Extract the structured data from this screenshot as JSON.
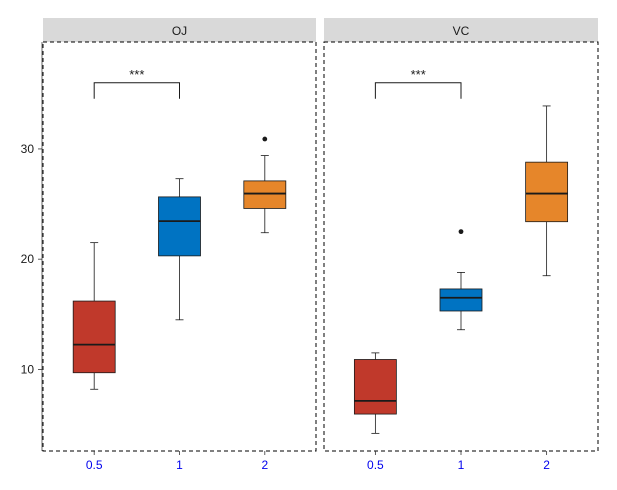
{
  "chart_data": {
    "type": "boxplot",
    "title": "",
    "xlabel": "",
    "ylabel": "",
    "ylim": [
      2.6,
      39.7
    ],
    "y_ticks": [
      10,
      20,
      30
    ],
    "categories": [
      "0.5",
      "1",
      "2"
    ],
    "tick_label_color": "#0000ee",
    "series_colors": {
      "0.5": "#c0392b",
      "1": "#0073c2",
      "2": "#e6862a"
    },
    "facets": [
      {
        "label": "OJ",
        "boxes": [
          {
            "category": "0.5",
            "min": 8.2,
            "q1": 9.7,
            "median": 12.25,
            "q3": 16.2,
            "max": 21.5,
            "outliers": []
          },
          {
            "category": "1",
            "min": 14.5,
            "q1": 20.3,
            "median": 23.45,
            "q3": 25.65,
            "max": 27.3,
            "outliers": []
          },
          {
            "category": "2",
            "min": 22.4,
            "q1": 24.6,
            "median": 25.95,
            "q3": 27.1,
            "max": 29.4,
            "outliers": [
              30.9
            ]
          }
        ],
        "significance": {
          "from": "0.5",
          "to": "1",
          "label": "***",
          "y": 36.0
        }
      },
      {
        "label": "VC",
        "boxes": [
          {
            "category": "0.5",
            "min": 4.2,
            "q1": 5.95,
            "median": 7.15,
            "q3": 10.9,
            "max": 11.5,
            "outliers": []
          },
          {
            "category": "1",
            "min": 13.6,
            "q1": 15.3,
            "median": 16.5,
            "q3": 17.3,
            "max": 18.8,
            "outliers": [
              22.5
            ]
          },
          {
            "category": "2",
            "min": 18.5,
            "q1": 23.4,
            "median": 25.95,
            "q3": 28.8,
            "max": 33.9,
            "outliers": []
          }
        ],
        "significance": {
          "from": "0.5",
          "to": "1",
          "label": "***",
          "y": 36.0
        }
      }
    ]
  }
}
